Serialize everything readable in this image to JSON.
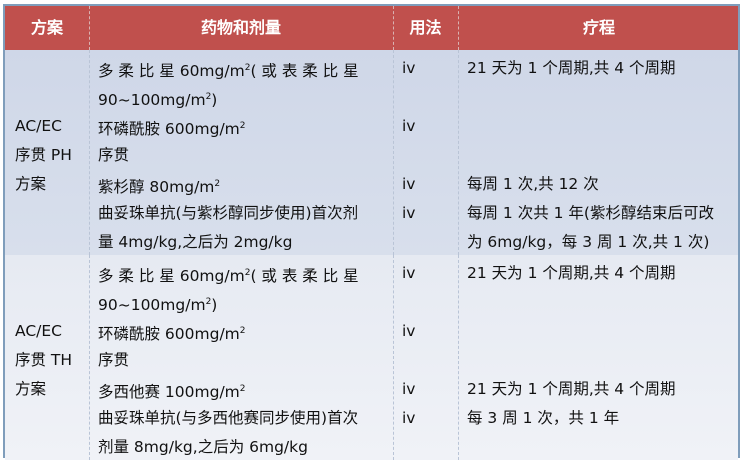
{
  "header": [
    "方案",
    "药物和剂量",
    "用法",
    "疗程"
  ],
  "rows": [
    {
      "scheme": [
        "",
        "",
        "AC/EC",
        "序贯 PH",
        "方案",
        "",
        ""
      ],
      "drugs": [
        [
          {
            "t": "多 柔 比 星  60mg/m"
          },
          {
            "sup": "2"
          },
          {
            "t": "( 或 表 柔 比 星"
          }
        ],
        [
          {
            "t": "90~100mg/m"
          },
          {
            "sup": "2"
          },
          {
            "t": ")"
          }
        ],
        [
          {
            "t": "环磷酰胺 600mg/m"
          },
          {
            "sup": "2"
          }
        ],
        [
          {
            "t": "序贯"
          }
        ],
        [
          {
            "t": "紫杉醇 80mg/m"
          },
          {
            "sup": "2"
          }
        ],
        [
          {
            "t": "曲妥珠单抗(与紫杉醇同步使用)首次剂"
          }
        ],
        [
          {
            "t": "量 4mg/kg,之后为 2mg/kg"
          }
        ]
      ],
      "usage": [
        "iv",
        "",
        "iv",
        "",
        "iv",
        "iv",
        ""
      ],
      "course": [
        "21 天为 1 个周期,共 4 个周期",
        "",
        "",
        "",
        "每周 1 次,共 12 次",
        "每周 1 次共 1 年(紫杉醇结束后可改",
        "为 6mg/kg，每 3 周 1 次,共 1 次)"
      ]
    },
    {
      "scheme": [
        "",
        "",
        "AC/EC",
        "序贯 TH",
        "方案",
        "",
        ""
      ],
      "drugs": [
        [
          {
            "t": "多 柔 比 星  60mg/m"
          },
          {
            "sup": "2"
          },
          {
            "t": "( 或 表 柔 比 星"
          }
        ],
        [
          {
            "t": "90~100mg/m"
          },
          {
            "sup": "2"
          },
          {
            "t": ")"
          }
        ],
        [
          {
            "t": "环磷酰胺 600mg/m"
          },
          {
            "sup": "2"
          }
        ],
        [
          {
            "t": "序贯"
          }
        ],
        [
          {
            "t": "多西他赛 100mg/m"
          },
          {
            "sup": "2"
          }
        ],
        [
          {
            "t": "曲妥珠单抗(与多西他赛同步使用)首次"
          }
        ],
        [
          {
            "t": "剂量 8mg/kg,之后为 6mg/kg"
          }
        ]
      ],
      "usage": [
        "iv",
        "",
        "iv",
        "",
        "iv",
        "iv",
        ""
      ],
      "course": [
        "21 天为 1 个周期,共 4 个周期",
        "",
        "",
        "",
        "21 天为 1 个周期,共 4 个周期",
        "每 3 周 1 次，共 1 年",
        ""
      ]
    }
  ],
  "colors": {
    "header": "#c0504d",
    "border": "#7f9dbb",
    "row1": "#cfd7e8",
    "row2": "#e9edf4"
  }
}
